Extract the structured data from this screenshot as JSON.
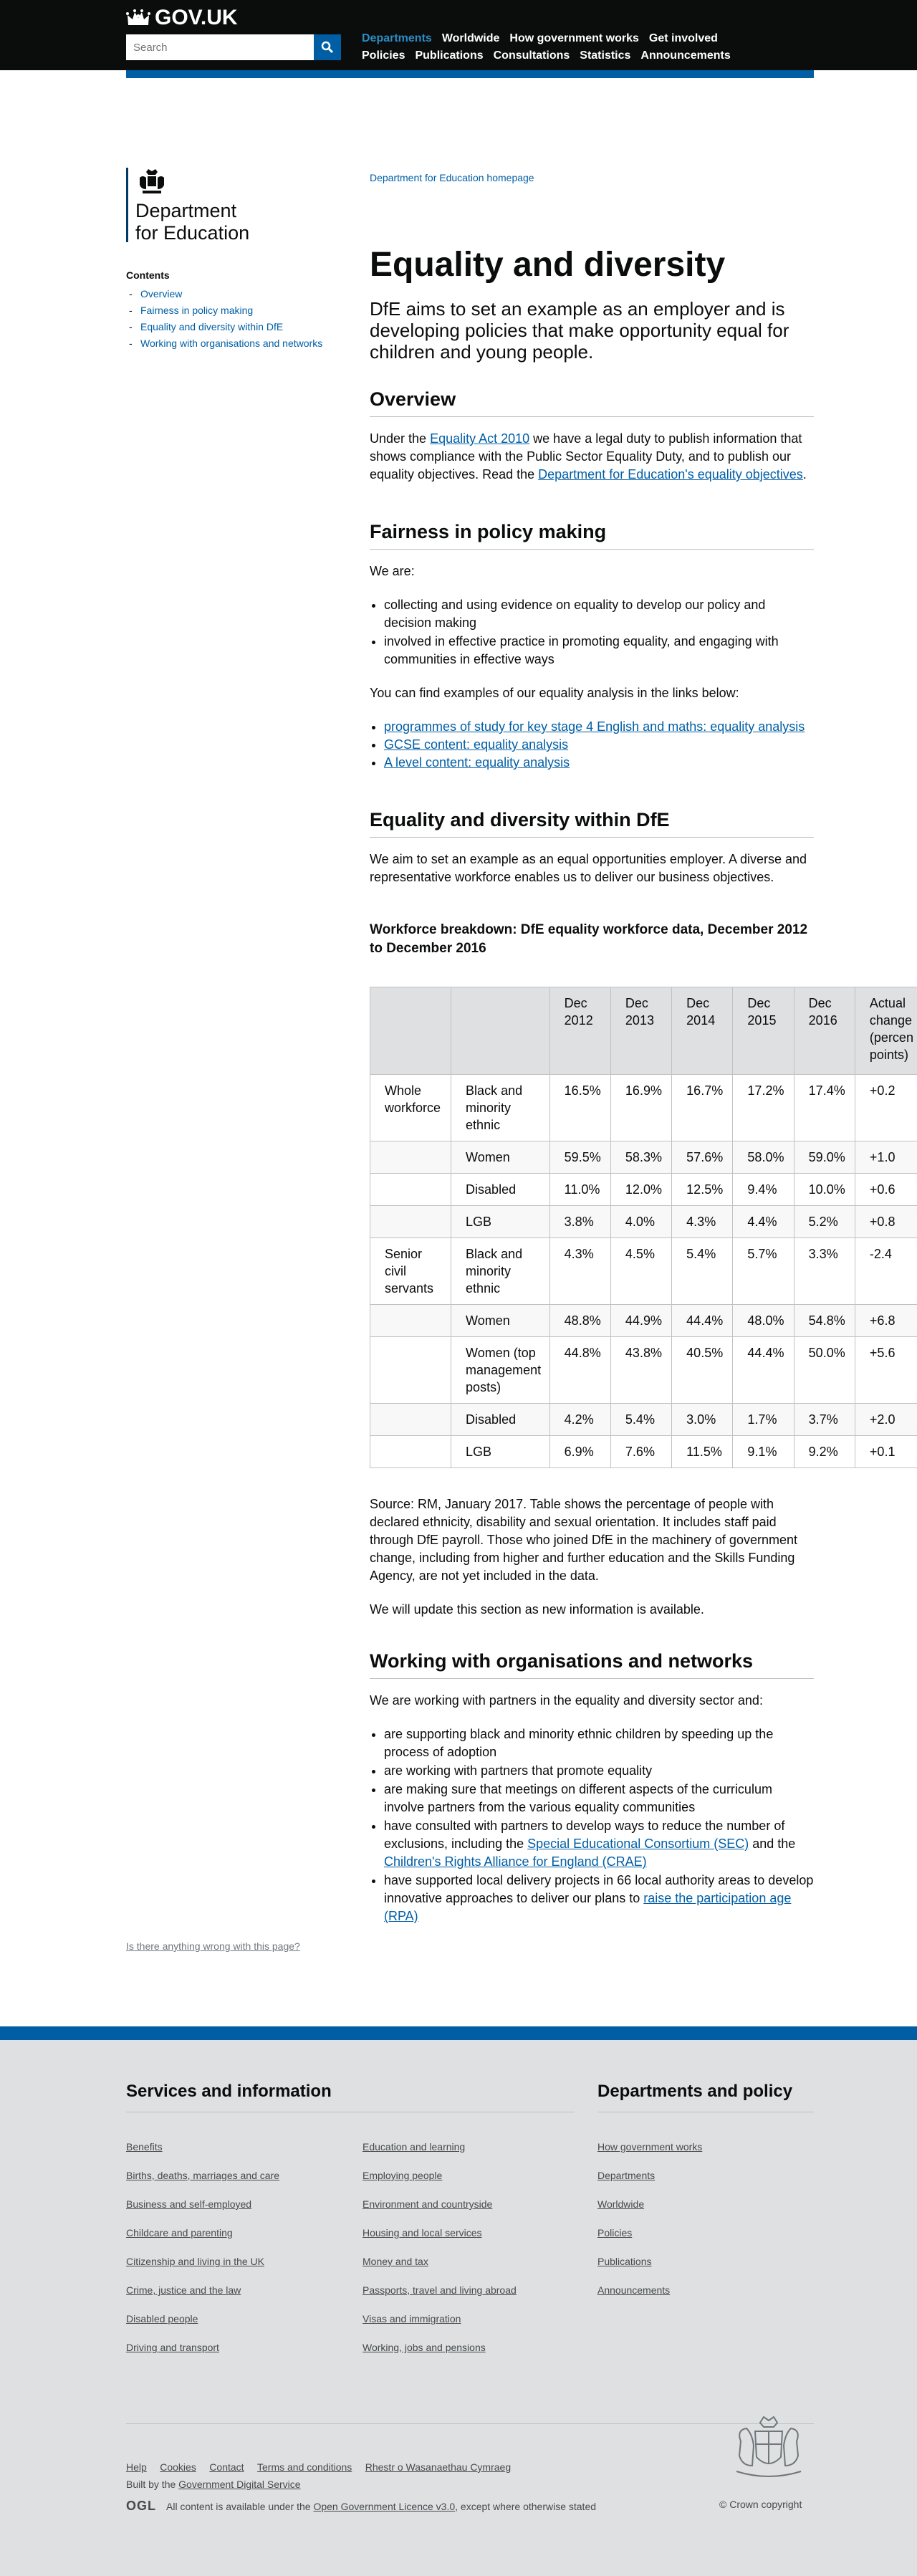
{
  "header": {
    "logo_text": "GOV.UK",
    "search_placeholder": "Search",
    "nav_row1": [
      "Departments",
      "Worldwide",
      "How government works",
      "Get involved"
    ],
    "nav_row2": [
      "Policies",
      "Publications",
      "Consultations",
      "Statistics",
      "Announcements"
    ]
  },
  "sidebar": {
    "org_name_line1": "Department",
    "org_name_line2": "for Education",
    "contents_title": "Contents",
    "contents": [
      "Overview",
      "Fairness in policy making",
      "Equality and diversity within DfE",
      "Working with organisations and networks"
    ]
  },
  "main": {
    "dept_link": "Department for Education homepage",
    "title": "Equality and diversity",
    "lede": "DfE aims to set an example as an employer and is developing policies that make opportunity equal for children and young people.",
    "overview": {
      "heading": "Overview",
      "p_before_link1": "Under the ",
      "link1": "Equality Act 2010",
      "p_after_link1": " we have a legal duty to publish information that shows compliance with the Public Sector Equality Duty, and to publish our equality objectives. Read the ",
      "link2": "Department for Education's equality objectives",
      "p_end": "."
    },
    "fairness": {
      "heading": "Fairness in policy making",
      "intro": "We are:",
      "bullets": [
        "collecting and using evidence on equality to develop our policy and decision making",
        "involved in effective practice in promoting equality, and engaging with communities in effective ways"
      ],
      "examples_text": "You can find examples of our equality analysis in the links below:",
      "links": [
        "programmes of study for key stage 4 English and maths: equality analysis",
        "GCSE content: equality analysis",
        "A level content: equality analysis"
      ]
    },
    "within": {
      "heading": "Equality and diversity within DfE",
      "p": "We aim to set an example as an equal opportunities employer. A diverse and representative workforce enables us to deliver our business objectives.",
      "caption": "Workforce breakdown: DfE equality workforce data, December 2012 to December 2016",
      "table_headers": [
        "",
        "",
        "Dec 2012",
        "Dec 2013",
        "Dec 2014",
        "Dec 2015",
        "Dec 2016",
        "Actual change (percen points)"
      ],
      "table_rows": [
        [
          "Whole workforce",
          "Black and minority ethnic",
          "16.5%",
          "16.9%",
          "16.7%",
          "17.2%",
          "17.4%",
          "+0.2"
        ],
        [
          "",
          "Women",
          "59.5%",
          "58.3%",
          "57.6%",
          "58.0%",
          "59.0%",
          "+1.0"
        ],
        [
          "",
          "Disabled",
          "11.0%",
          "12.0%",
          "12.5%",
          "9.4%",
          "10.0%",
          "+0.6"
        ],
        [
          "",
          "LGB",
          "3.8%",
          "4.0%",
          "4.3%",
          "4.4%",
          "5.2%",
          "+0.8"
        ],
        [
          "Senior civil servants",
          "Black and minority ethnic",
          "4.3%",
          "4.5%",
          "5.4%",
          "5.7%",
          "3.3%",
          "-2.4"
        ],
        [
          "",
          "Women",
          "48.8%",
          "44.9%",
          "44.4%",
          "48.0%",
          "54.8%",
          "+6.8"
        ],
        [
          "",
          "Women (top management posts)",
          "44.8%",
          "43.8%",
          "40.5%",
          "44.4%",
          "50.0%",
          "+5.6"
        ],
        [
          "",
          "Disabled",
          "4.2%",
          "5.4%",
          "3.0%",
          "1.7%",
          "3.7%",
          "+2.0"
        ],
        [
          "",
          "LGB",
          "6.9%",
          "7.6%",
          "11.5%",
          "9.1%",
          "9.2%",
          "+0.1"
        ]
      ],
      "source": "Source: RM, January 2017. Table shows the percentage of people with declared ethnicity, disability and sexual orientation. It includes staff paid through DfE payroll. Those who joined DfE in the machinery of government change, including from higher and further education and the Skills Funding Agency, are not yet included in the data.",
      "update": "We will update this section as new information is available."
    },
    "working": {
      "heading": "Working with organisations and networks",
      "intro": "We are working with partners in the equality and diversity sector and:",
      "b1": "are supporting black and minority ethnic children by speeding up the process of adoption",
      "b2": "are working with partners that promote equality",
      "b3": "are making sure that meetings on different aspects of the curriculum involve partners from the various equality communities",
      "b4_pre": "have consulted with partners to develop ways to reduce the number of exclusions, including the ",
      "b4_link1": "Special Educational Consortium (SEC)",
      "b4_mid": " and the ",
      "b4_link2": "Children's Rights Alliance for England (CRAE)",
      "b5_pre": "have supported local delivery projects in 66 local authority areas to develop innovative approaches to deliver our plans to ",
      "b5_link": "raise the participation age (RPA)"
    },
    "feedback": "Is there anything wrong with this page?"
  },
  "footer": {
    "services_heading": "Services and information",
    "services_col1": [
      "Benefits",
      "Births, deaths, marriages and care",
      "Business and self-employed",
      "Childcare and parenting",
      "Citizenship and living in the UK",
      "Crime, justice and the law",
      "Disabled people",
      "Driving and transport"
    ],
    "services_col2": [
      "Education and learning",
      "Employing people",
      "Environment and countryside",
      "Housing and local services",
      "Money and tax",
      "Passports, travel and living abroad",
      "Visas and immigration",
      "Working, jobs and pensions"
    ],
    "depts_heading": "Departments and policy",
    "depts_links": [
      "How government works",
      "Departments",
      "Worldwide",
      "Policies",
      "Publications",
      "Announcements"
    ],
    "meta_links": [
      "Help",
      "Cookies",
      "Contact",
      "Terms and conditions",
      "Rhestr o Wasanaethau Cymraeg"
    ],
    "built_pre": "Built by the ",
    "built_link": "Government Digital Service",
    "ogl_badge": "OGL",
    "licence_pre": "All content is available under the ",
    "licence_link": "Open Government Licence v3.0",
    "licence_post": ", except where otherwise stated",
    "copyright": "© Crown copyright"
  }
}
